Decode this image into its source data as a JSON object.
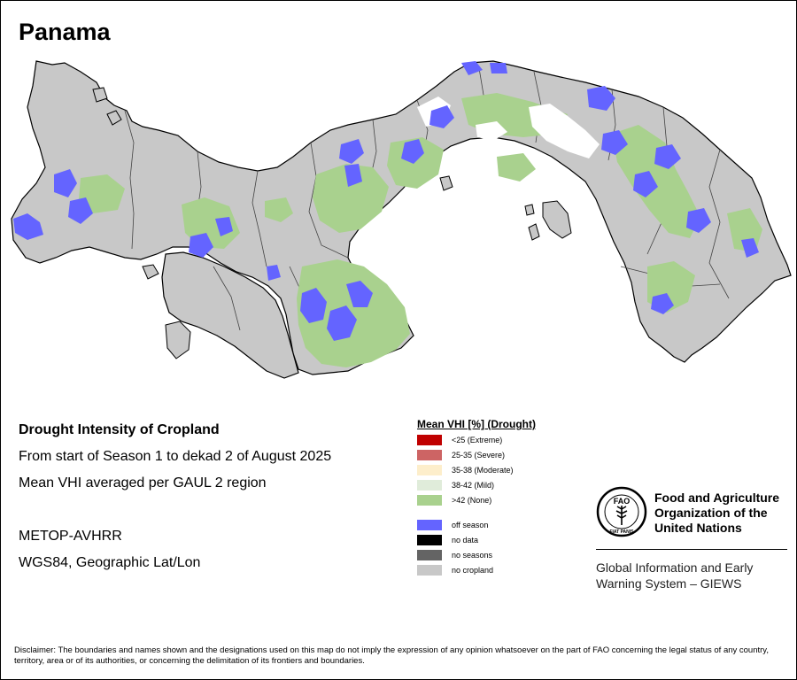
{
  "title": "Panama",
  "info": {
    "heading": "Drought Intensity of Cropland",
    "period": "From start of Season 1 to dekad 2 of August 2025",
    "method": "Mean VHI averaged per GAUL 2 region",
    "sensor": "METOP-AVHRR",
    "projection": "WGS84, Geographic Lat/Lon"
  },
  "legend": {
    "title": "Mean VHI [%] (Drought)",
    "classes": [
      {
        "label": "<25    (Extreme)",
        "color": "#c00000"
      },
      {
        "label": "25-35 (Severe)",
        "color": "#cd6464"
      },
      {
        "label": "35-38 (Moderate)",
        "color": "#fdeecb"
      },
      {
        "label": "38-42 (Mild)",
        "color": "#e0ecda"
      },
      {
        "label": ">42    (None)",
        "color": "#a9d18e"
      }
    ],
    "other": [
      {
        "label": "off season",
        "color": "#6464ff"
      },
      {
        "label": "no data",
        "color": "#000000"
      },
      {
        "label": "no seasons",
        "color": "#646464"
      },
      {
        "label": "no cropland",
        "color": "#c8c8c8"
      }
    ]
  },
  "org": {
    "name_line1": "Food and Agriculture",
    "name_line2": "Organization of the",
    "name_line3": "United Nations",
    "logo_text": "FAO",
    "logo_motto": "FIAT PANIS",
    "system_line1": "Global Information and Early",
    "system_line2": "Warning System – GIEWS"
  },
  "disclaimer": "Disclaimer: The boundaries and names shown and the designations used on this map do not imply the expression of any opinion whatsoever on the part of FAO concerning the legal status of any country, territory, area or of its authorities, or concerning the delimitation of its frontiers and boundaries.",
  "colors": {
    "land": "#c8c8c8",
    "crop_none": "#a9d18e",
    "off_season": "#6464ff",
    "mild": "#ffffff"
  }
}
